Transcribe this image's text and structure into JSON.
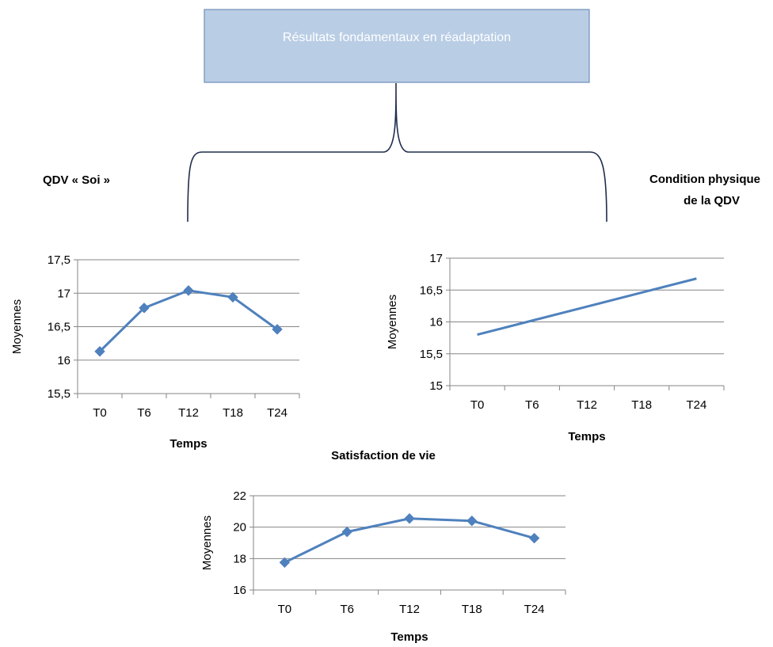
{
  "banner": {
    "title": "Résultats fondamentaux en réadaptation",
    "fill": "#b9cde5",
    "border": "#6f8fb8"
  },
  "labels": {
    "left_heading": "QDV « Soi »",
    "right_heading_line1": "Condition  physique",
    "right_heading_line2": "de la QDV",
    "bottom_heading": "Satisfaction de vie"
  },
  "colors": {
    "series": "#4f81bd",
    "grid": "#868686",
    "axis": "#868686"
  },
  "chart_data": [
    {
      "id": "qdv-soi",
      "type": "line",
      "marker": "diamond",
      "categories": [
        "T0",
        "T6",
        "T12",
        "T18",
        "T24"
      ],
      "values": [
        16.13,
        16.78,
        17.04,
        16.94,
        16.46
      ],
      "ylim": [
        15.5,
        17.5
      ],
      "yticks": [
        15.5,
        16,
        16.5,
        17,
        17.5
      ],
      "ytick_labels": [
        "15,5",
        "16",
        "16,5",
        "17",
        "17,5"
      ],
      "xlabel": "Temps",
      "ylabel": "Moyennes",
      "grid": true
    },
    {
      "id": "condition-physique",
      "type": "line",
      "marker": "none",
      "categories": [
        "T0",
        "T6",
        "T12",
        "T18",
        "T24"
      ],
      "values": [
        15.8,
        16.02,
        16.24,
        16.46,
        16.68
      ],
      "ylim": [
        15,
        17
      ],
      "yticks": [
        15,
        15.5,
        16,
        16.5,
        17
      ],
      "ytick_labels": [
        "15",
        "15,5",
        "16",
        "16,5",
        "17"
      ],
      "xlabel": "Temps",
      "ylabel": "Moyennes",
      "grid": true
    },
    {
      "id": "satisfaction-vie",
      "type": "line",
      "marker": "diamond",
      "categories": [
        "T0",
        "T6",
        "T12",
        "T18",
        "T24"
      ],
      "values": [
        17.75,
        19.7,
        20.55,
        20.4,
        19.3
      ],
      "ylim": [
        16,
        22
      ],
      "yticks": [
        16,
        18,
        20,
        22
      ],
      "ytick_labels": [
        "16",
        "18",
        "20",
        "22"
      ],
      "xlabel": "Temps",
      "ylabel": "Moyennes",
      "grid": true
    }
  ]
}
